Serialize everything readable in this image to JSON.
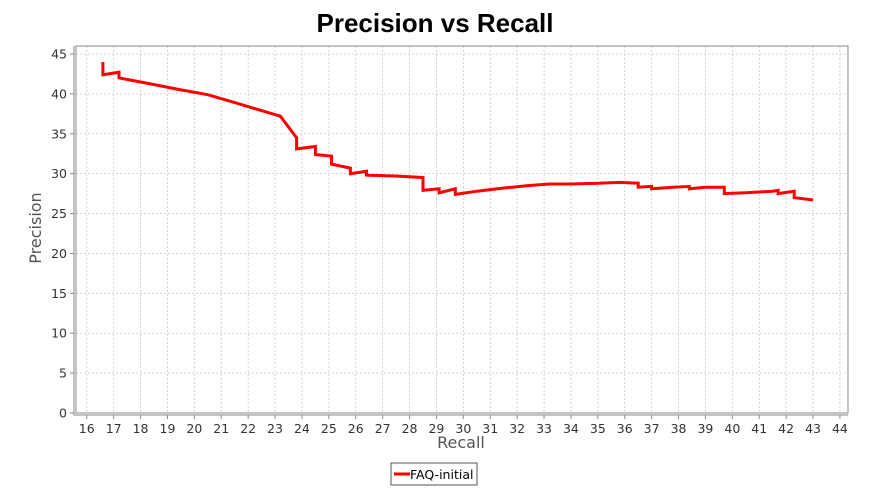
{
  "chart_data": {
    "type": "line",
    "title": "Precision vs Recall",
    "xlabel": "Recall",
    "ylabel": "Precision",
    "xlim": [
      15.6,
      44.3
    ],
    "ylim": [
      0,
      46
    ],
    "xticks": [
      16,
      17,
      18,
      19,
      20,
      21,
      22,
      23,
      24,
      25,
      26,
      27,
      28,
      29,
      30,
      31,
      32,
      33,
      34,
      35,
      36,
      37,
      38,
      39,
      40,
      41,
      42,
      43,
      44
    ],
    "yticks": [
      0,
      5,
      10,
      15,
      20,
      25,
      30,
      35,
      40,
      45
    ],
    "grid": true,
    "legend_position": "bottom-center",
    "series": [
      {
        "name": "FAQ-initial",
        "color": "#ff0000",
        "points": [
          [
            16.6,
            44.0
          ],
          [
            16.6,
            42.4
          ],
          [
            17.2,
            42.7
          ],
          [
            17.2,
            42.0
          ],
          [
            18.3,
            41.3
          ],
          [
            19.5,
            40.5
          ],
          [
            20.5,
            39.9
          ],
          [
            21.5,
            38.9
          ],
          [
            22.4,
            38.0
          ],
          [
            23.2,
            37.2
          ],
          [
            23.8,
            34.5
          ],
          [
            23.8,
            33.1
          ],
          [
            24.5,
            33.4
          ],
          [
            24.5,
            32.4
          ],
          [
            25.1,
            32.2
          ],
          [
            25.1,
            31.2
          ],
          [
            25.8,
            30.7
          ],
          [
            25.8,
            30.0
          ],
          [
            26.4,
            30.3
          ],
          [
            26.4,
            29.8
          ],
          [
            27.5,
            29.7
          ],
          [
            28.5,
            29.5
          ],
          [
            28.5,
            27.9
          ],
          [
            29.1,
            28.1
          ],
          [
            29.1,
            27.6
          ],
          [
            29.7,
            28.1
          ],
          [
            29.7,
            27.4
          ],
          [
            30.5,
            27.8
          ],
          [
            31.5,
            28.2
          ],
          [
            32.4,
            28.5
          ],
          [
            33.2,
            28.7
          ],
          [
            34.0,
            28.7
          ],
          [
            35.0,
            28.8
          ],
          [
            35.8,
            28.9
          ],
          [
            36.5,
            28.8
          ],
          [
            36.5,
            28.3
          ],
          [
            37.0,
            28.4
          ],
          [
            37.0,
            28.1
          ],
          [
            37.8,
            28.3
          ],
          [
            38.4,
            28.4
          ],
          [
            38.4,
            28.1
          ],
          [
            39.0,
            28.3
          ],
          [
            39.7,
            28.3
          ],
          [
            39.7,
            27.5
          ],
          [
            40.5,
            27.6
          ],
          [
            41.5,
            27.8
          ],
          [
            41.7,
            27.9
          ],
          [
            41.7,
            27.5
          ],
          [
            42.3,
            27.8
          ],
          [
            42.3,
            27.0
          ],
          [
            43.0,
            26.7
          ]
        ]
      }
    ]
  }
}
